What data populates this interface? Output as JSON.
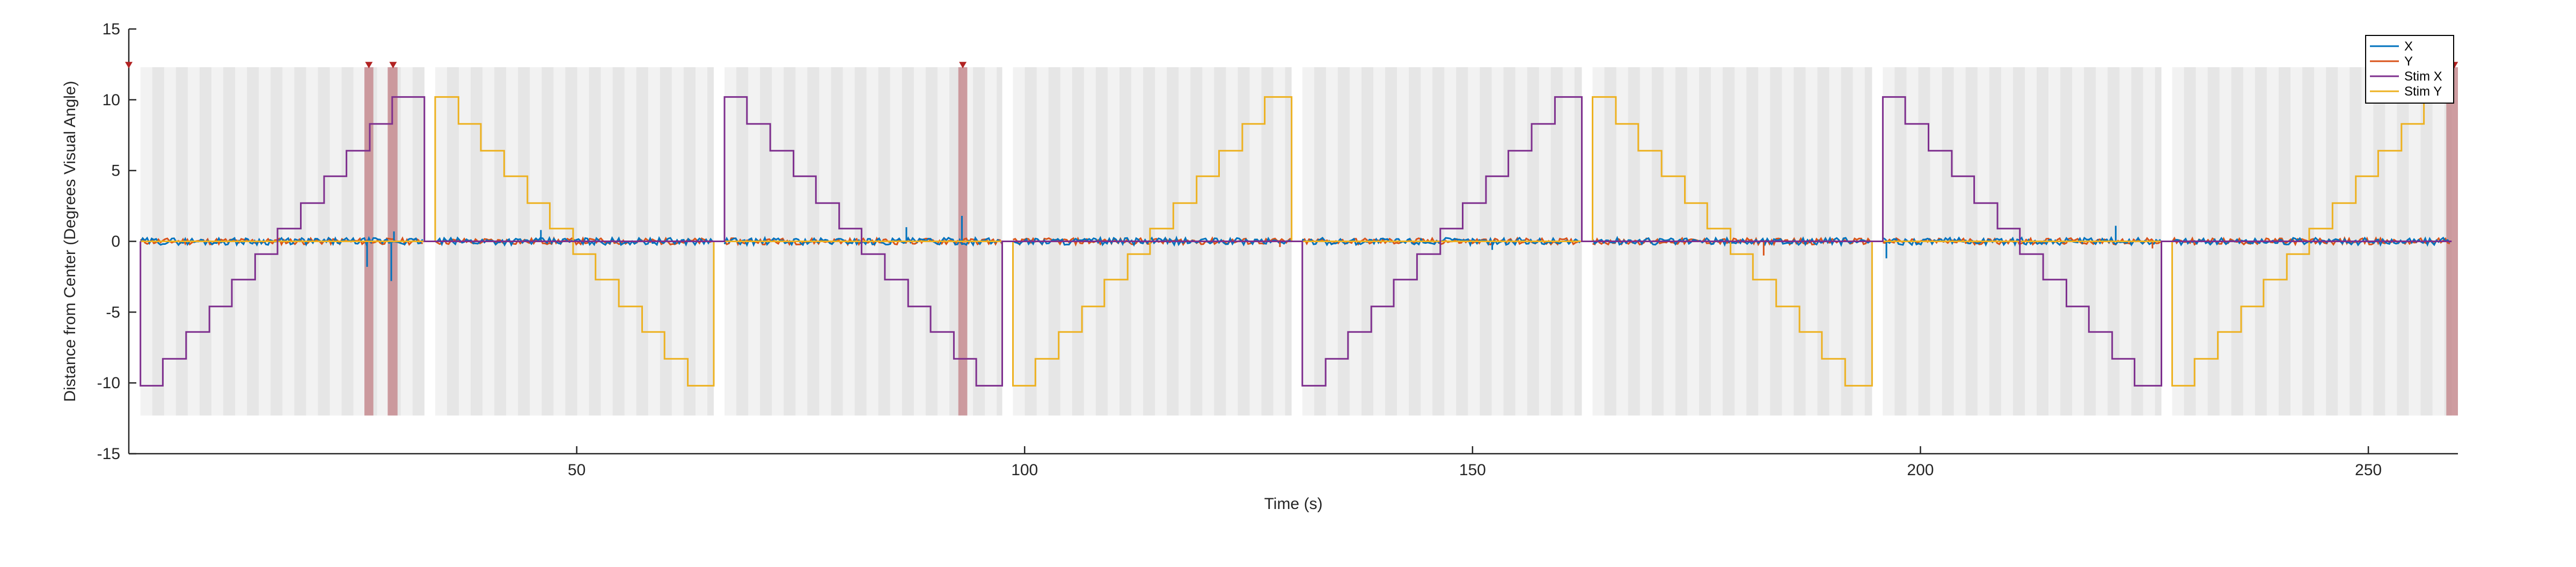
{
  "chart_data": {
    "type": "line",
    "title": "",
    "xlabel": "Time (s)",
    "ylabel": "Distance from Center (Degrees Visual Angle)",
    "xlim": [
      0,
      260
    ],
    "ylim": [
      -15,
      15
    ],
    "xticks": [
      50,
      100,
      150,
      200,
      250
    ],
    "yticks": [
      -15,
      -10,
      -5,
      0,
      5,
      10,
      15
    ],
    "grid": false,
    "legend_position": "top-right",
    "background_colors": {
      "band_light": "#f2f2f2",
      "band_dark": "#e6e6e6",
      "marker": "#c58b8f"
    },
    "trial_blocks": [
      {
        "start": 1.3,
        "end": 33.0
      },
      {
        "start": 34.2,
        "end": 65.3
      },
      {
        "start": 66.5,
        "end": 97.5
      },
      {
        "start": 98.7,
        "end": 129.8
      },
      {
        "start": 131.0,
        "end": 162.2
      },
      {
        "start": 163.4,
        "end": 194.6
      },
      {
        "start": 195.8,
        "end": 226.9
      },
      {
        "start": 228.1,
        "end": 259.3
      }
    ],
    "marked_intervals": [
      {
        "start": 26.3,
        "end": 27.3
      },
      {
        "start": 28.9,
        "end": 30.0
      },
      {
        "start": 92.6,
        "end": 93.6
      },
      {
        "start": 258.7,
        "end": 260.0
      }
    ],
    "event_markers": [
      0,
      26.8,
      29.5,
      93.1,
      259.6
    ],
    "stim_x_steps": [
      {
        "t": 1.3,
        "v": 0
      },
      {
        "t": 1.3,
        "v": -10.2
      },
      {
        "t": 3.8,
        "v": -8.3
      },
      {
        "t": 6.4,
        "v": -6.4
      },
      {
        "t": 9.0,
        "v": -4.6
      },
      {
        "t": 11.5,
        "v": -2.7
      },
      {
        "t": 14.1,
        "v": -0.9
      },
      {
        "t": 16.6,
        "v": 0.9
      },
      {
        "t": 19.2,
        "v": 2.7
      },
      {
        "t": 21.8,
        "v": 4.6
      },
      {
        "t": 24.3,
        "v": 6.4
      },
      {
        "t": 26.9,
        "v": 8.3
      },
      {
        "t": 29.4,
        "v": 10.2
      },
      {
        "t": 32.0,
        "v": 10.2
      },
      {
        "t": 33.0,
        "v": 10.2
      },
      {
        "t": 33.0,
        "v": 0
      },
      {
        "t": 66.5,
        "v": 0
      },
      {
        "t": 66.5,
        "v": 10.2
      },
      {
        "t": 69.0,
        "v": 8.3
      },
      {
        "t": 71.6,
        "v": 6.4
      },
      {
        "t": 74.2,
        "v": 4.6
      },
      {
        "t": 76.7,
        "v": 2.7
      },
      {
        "t": 79.3,
        "v": 0.9
      },
      {
        "t": 81.8,
        "v": -0.9
      },
      {
        "t": 84.4,
        "v": -2.7
      },
      {
        "t": 87.0,
        "v": -4.6
      },
      {
        "t": 89.5,
        "v": -6.4
      },
      {
        "t": 92.1,
        "v": -8.3
      },
      {
        "t": 94.6,
        "v": -10.2
      },
      {
        "t": 97.5,
        "v": -10.2
      },
      {
        "t": 97.5,
        "v": 0
      },
      {
        "t": 131.0,
        "v": 0
      },
      {
        "t": 131.0,
        "v": -10.2
      },
      {
        "t": 133.6,
        "v": -8.3
      },
      {
        "t": 136.1,
        "v": -6.4
      },
      {
        "t": 138.7,
        "v": -4.6
      },
      {
        "t": 141.2,
        "v": -2.7
      },
      {
        "t": 143.8,
        "v": -0.9
      },
      {
        "t": 146.4,
        "v": 0.9
      },
      {
        "t": 148.9,
        "v": 2.7
      },
      {
        "t": 151.5,
        "v": 4.6
      },
      {
        "t": 154.0,
        "v": 6.4
      },
      {
        "t": 156.6,
        "v": 8.3
      },
      {
        "t": 159.2,
        "v": 10.2
      },
      {
        "t": 162.2,
        "v": 10.2
      },
      {
        "t": 162.2,
        "v": 0
      },
      {
        "t": 195.8,
        "v": 0
      },
      {
        "t": 195.8,
        "v": 10.2
      },
      {
        "t": 198.3,
        "v": 8.3
      },
      {
        "t": 200.9,
        "v": 6.4
      },
      {
        "t": 203.5,
        "v": 4.6
      },
      {
        "t": 206.0,
        "v": 2.7
      },
      {
        "t": 208.6,
        "v": 0.9
      },
      {
        "t": 211.1,
        "v": -0.9
      },
      {
        "t": 213.7,
        "v": -2.7
      },
      {
        "t": 216.3,
        "v": -4.6
      },
      {
        "t": 218.8,
        "v": -6.4
      },
      {
        "t": 221.4,
        "v": -8.3
      },
      {
        "t": 223.9,
        "v": -10.2
      },
      {
        "t": 226.9,
        "v": -10.2
      },
      {
        "t": 226.9,
        "v": 0
      },
      {
        "t": 259.3,
        "v": 0
      }
    ],
    "stim_y_steps": [
      {
        "t": 1.3,
        "v": 0
      },
      {
        "t": 34.2,
        "v": 0
      },
      {
        "t": 34.2,
        "v": 10.2
      },
      {
        "t": 36.8,
        "v": 8.3
      },
      {
        "t": 39.3,
        "v": 6.4
      },
      {
        "t": 41.9,
        "v": 4.6
      },
      {
        "t": 44.5,
        "v": 2.7
      },
      {
        "t": 47.0,
        "v": 0.9
      },
      {
        "t": 49.6,
        "v": -0.9
      },
      {
        "t": 52.1,
        "v": -2.7
      },
      {
        "t": 54.7,
        "v": -4.6
      },
      {
        "t": 57.3,
        "v": -6.4
      },
      {
        "t": 59.8,
        "v": -8.3
      },
      {
        "t": 62.4,
        "v": -10.2
      },
      {
        "t": 65.3,
        "v": -10.2
      },
      {
        "t": 65.3,
        "v": 0
      },
      {
        "t": 98.7,
        "v": 0
      },
      {
        "t": 98.7,
        "v": -10.2
      },
      {
        "t": 101.2,
        "v": -8.3
      },
      {
        "t": 103.8,
        "v": -6.4
      },
      {
        "t": 106.4,
        "v": -4.6
      },
      {
        "t": 108.9,
        "v": -2.7
      },
      {
        "t": 111.5,
        "v": -0.9
      },
      {
        "t": 114.0,
        "v": 0.9
      },
      {
        "t": 116.6,
        "v": 2.7
      },
      {
        "t": 119.2,
        "v": 4.6
      },
      {
        "t": 121.7,
        "v": 6.4
      },
      {
        "t": 124.3,
        "v": 8.3
      },
      {
        "t": 126.8,
        "v": 10.2
      },
      {
        "t": 129.8,
        "v": 10.2
      },
      {
        "t": 129.8,
        "v": 0
      },
      {
        "t": 163.4,
        "v": 0
      },
      {
        "t": 163.4,
        "v": 10.2
      },
      {
        "t": 166.0,
        "v": 8.3
      },
      {
        "t": 168.5,
        "v": 6.4
      },
      {
        "t": 171.1,
        "v": 4.6
      },
      {
        "t": 173.7,
        "v": 2.7
      },
      {
        "t": 176.2,
        "v": 0.9
      },
      {
        "t": 178.8,
        "v": -0.9
      },
      {
        "t": 181.3,
        "v": -2.7
      },
      {
        "t": 183.9,
        "v": -4.6
      },
      {
        "t": 186.5,
        "v": -6.4
      },
      {
        "t": 189.0,
        "v": -8.3
      },
      {
        "t": 191.6,
        "v": -10.2
      },
      {
        "t": 194.6,
        "v": -10.2
      },
      {
        "t": 194.6,
        "v": 0
      },
      {
        "t": 228.1,
        "v": 0
      },
      {
        "t": 228.1,
        "v": -10.2
      },
      {
        "t": 230.6,
        "v": -8.3
      },
      {
        "t": 233.2,
        "v": -6.4
      },
      {
        "t": 235.8,
        "v": -4.6
      },
      {
        "t": 238.3,
        "v": -2.7
      },
      {
        "t": 240.9,
        "v": -0.9
      },
      {
        "t": 243.4,
        "v": 0.9
      },
      {
        "t": 246.0,
        "v": 2.7
      },
      {
        "t": 248.6,
        "v": 4.6
      },
      {
        "t": 251.1,
        "v": 6.4
      },
      {
        "t": 253.7,
        "v": 8.3
      },
      {
        "t": 256.2,
        "v": 10.2
      },
      {
        "t": 259.3,
        "v": 10.2
      }
    ],
    "gaze_spikes": [
      {
        "t": 26.6,
        "series": "X",
        "v": -1.8
      },
      {
        "t": 29.3,
        "series": "X",
        "v": -2.8
      },
      {
        "t": 29.6,
        "series": "X",
        "v": 0.7
      },
      {
        "t": 46.0,
        "series": "X",
        "v": 0.8
      },
      {
        "t": 86.8,
        "series": "X",
        "v": 1.0
      },
      {
        "t": 93.0,
        "series": "X",
        "v": 1.8
      },
      {
        "t": 128.5,
        "series": "Y",
        "v": -0.4
      },
      {
        "t": 152.2,
        "series": "X",
        "v": -0.6
      },
      {
        "t": 182.5,
        "series": "Y",
        "v": -1.0
      },
      {
        "t": 196.2,
        "series": "X",
        "v": -1.2
      },
      {
        "t": 221.8,
        "series": "X",
        "v": 1.1
      },
      {
        "t": 225.9,
        "series": "Y",
        "v": -0.5
      }
    ],
    "series": [
      {
        "name": "X",
        "color": "#0072bd",
        "values_note": "noisy gaze trace near 0"
      },
      {
        "name": "Y",
        "color": "#d95319",
        "values_note": "noisy gaze trace near 0"
      },
      {
        "name": "Stim X",
        "color": "#7e2f8e",
        "steps_key": "stim_x_steps"
      },
      {
        "name": "Stim Y",
        "color": "#edb120",
        "steps_key": "stim_y_steps"
      }
    ]
  }
}
